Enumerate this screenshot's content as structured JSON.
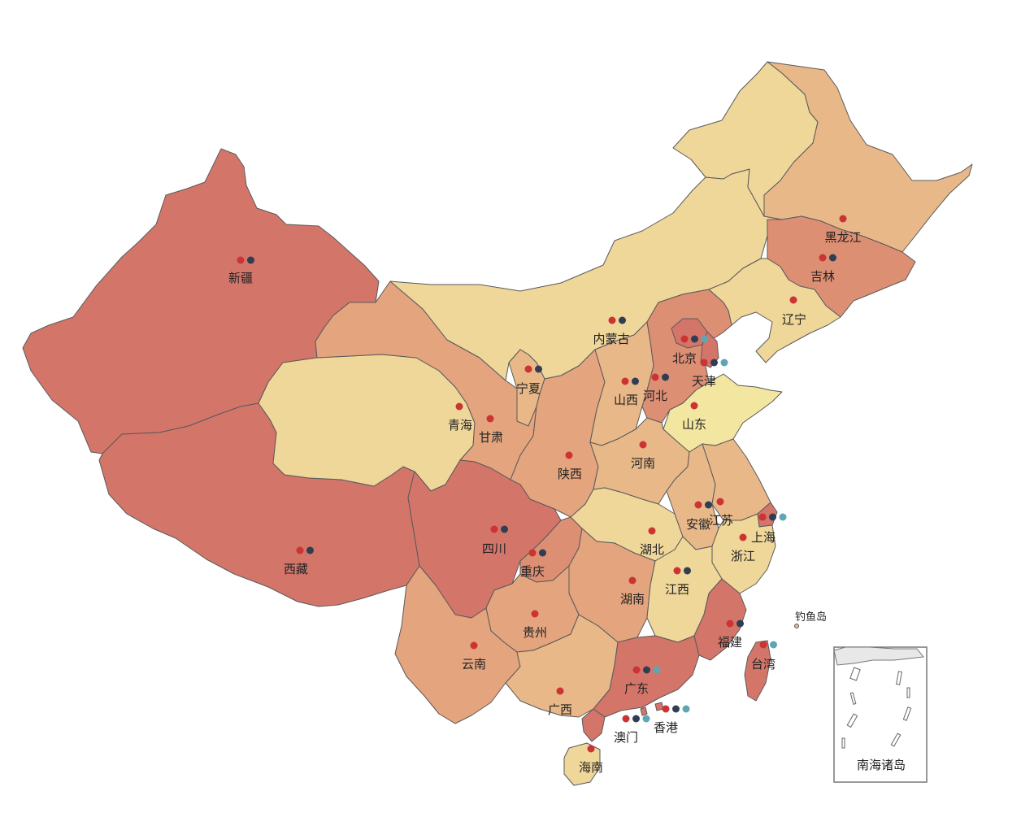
{
  "map": {
    "inset_label": "南海诸岛",
    "diaoyu_label": "钓鱼岛",
    "colors": {
      "level_1": "#f3e6a0",
      "level_2": "#efd699",
      "level_3": "#e8b889",
      "level_4": "#e3a47e",
      "level_5": "#dd8f74",
      "level_6": "#d4756a",
      "dot_red": "#cc3333",
      "dot_navy": "#2f3e52",
      "dot_teal": "#5fa6b4",
      "border": "#5a5a5a"
    },
    "provinces": [
      {
        "id": "xinjiang",
        "name": "新疆",
        "level": 6,
        "dots": [
          "dot_red",
          "dot_navy"
        ]
      },
      {
        "id": "xizang",
        "name": "西藏",
        "level": 6,
        "dots": [
          "dot_red",
          "dot_navy"
        ]
      },
      {
        "id": "qinghai",
        "name": "青海",
        "level": 2,
        "dots": [
          "dot_red"
        ]
      },
      {
        "id": "gansu",
        "name": "甘肃",
        "level": 4,
        "dots": [
          "dot_red"
        ]
      },
      {
        "id": "neimenggu",
        "name": "内蒙古",
        "level": 2,
        "dots": [
          "dot_red",
          "dot_navy"
        ]
      },
      {
        "id": "heilongjiang",
        "name": "黑龙江",
        "level": 3,
        "dots": [
          "dot_red"
        ]
      },
      {
        "id": "jilin",
        "name": "吉林",
        "level": 5,
        "dots": [
          "dot_red",
          "dot_navy"
        ]
      },
      {
        "id": "liaoning",
        "name": "辽宁",
        "level": 2,
        "dots": [
          "dot_red"
        ]
      },
      {
        "id": "ningxia",
        "name": "宁夏",
        "level": 3,
        "dots": [
          "dot_red",
          "dot_navy"
        ]
      },
      {
        "id": "shaanxi",
        "name": "陕西",
        "level": 4,
        "dots": [
          "dot_red"
        ]
      },
      {
        "id": "shanxi",
        "name": "山西",
        "level": 3,
        "dots": [
          "dot_red",
          "dot_navy"
        ]
      },
      {
        "id": "hebei",
        "name": "河北",
        "level": 5,
        "dots": [
          "dot_red",
          "dot_navy"
        ]
      },
      {
        "id": "beijing",
        "name": "北京",
        "level": 6,
        "dots": [
          "dot_red",
          "dot_navy",
          "dot_teal"
        ]
      },
      {
        "id": "tianjin",
        "name": "天津",
        "level": 6,
        "dots": [
          "dot_red",
          "dot_navy",
          "dot_teal"
        ]
      },
      {
        "id": "shandong",
        "name": "山东",
        "level": 1,
        "dots": [
          "dot_red"
        ]
      },
      {
        "id": "henan",
        "name": "河南",
        "level": 3,
        "dots": [
          "dot_red"
        ]
      },
      {
        "id": "sichuan",
        "name": "四川",
        "level": 6,
        "dots": [
          "dot_red",
          "dot_navy"
        ]
      },
      {
        "id": "chongqing",
        "name": "重庆",
        "level": 5,
        "dots": [
          "dot_red",
          "dot_navy"
        ]
      },
      {
        "id": "hubei",
        "name": "湖北",
        "level": 2,
        "dots": [
          "dot_red"
        ]
      },
      {
        "id": "anhui",
        "name": "安徽",
        "level": 3,
        "dots": [
          "dot_red",
          "dot_navy"
        ]
      },
      {
        "id": "jiangsu",
        "name": "江苏",
        "level": 3,
        "dots": [
          "dot_red"
        ]
      },
      {
        "id": "shanghai",
        "name": "上海",
        "level": 6,
        "dots": [
          "dot_red",
          "dot_navy",
          "dot_teal"
        ]
      },
      {
        "id": "zhejiang",
        "name": "浙江",
        "level": 2,
        "dots": [
          "dot_red"
        ]
      },
      {
        "id": "hunan",
        "name": "湖南",
        "level": 4,
        "dots": [
          "dot_red"
        ]
      },
      {
        "id": "jiangxi",
        "name": "江西",
        "level": 2,
        "dots": [
          "dot_red",
          "dot_navy"
        ]
      },
      {
        "id": "guizhou",
        "name": "贵州",
        "level": 4,
        "dots": [
          "dot_red"
        ]
      },
      {
        "id": "yunnan",
        "name": "云南",
        "level": 4,
        "dots": [
          "dot_red"
        ]
      },
      {
        "id": "guangxi",
        "name": "广西",
        "level": 3,
        "dots": [
          "dot_red"
        ]
      },
      {
        "id": "guangdong",
        "name": "广东",
        "level": 6,
        "dots": [
          "dot_red",
          "dot_navy",
          "dot_teal"
        ]
      },
      {
        "id": "fujian",
        "name": "福建",
        "level": 6,
        "dots": [
          "dot_red",
          "dot_navy"
        ]
      },
      {
        "id": "taiwan",
        "name": "台湾",
        "level": 6,
        "dots": [
          "dot_red",
          "dot_teal"
        ]
      },
      {
        "id": "hainan",
        "name": "海南",
        "level": 2,
        "dots": [
          "dot_red"
        ]
      },
      {
        "id": "xianggang",
        "name": "香港",
        "level": 6,
        "dots": [
          "dot_red",
          "dot_navy",
          "dot_teal"
        ]
      },
      {
        "id": "aomen",
        "name": "澳门",
        "level": 6,
        "dots": [
          "dot_red",
          "dot_navy",
          "dot_teal"
        ]
      }
    ]
  }
}
